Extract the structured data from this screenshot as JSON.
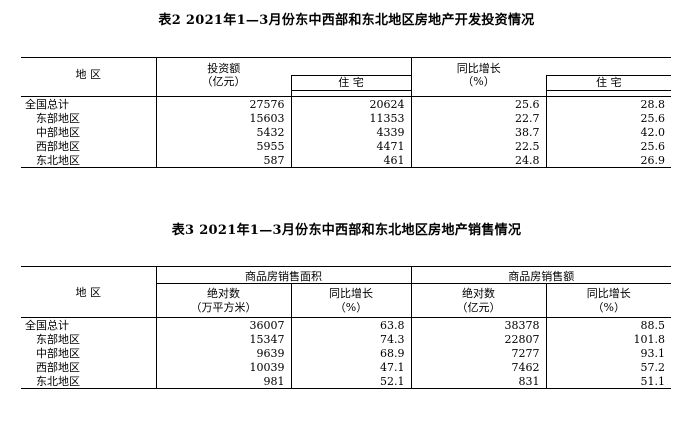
{
  "table2": {
    "title": "表2    2021年1—3月份东中西部和东北地区房地产开发投资情况",
    "header": {
      "region": "地    区",
      "investment": "投资额",
      "investment_unit": "（亿元）",
      "residential": "住    宅",
      "growth": "同比增长",
      "growth_unit": "（%）",
      "growth_residential": "住    宅"
    },
    "rows": [
      {
        "region": "全国总计",
        "investment": "27576",
        "residential": "20624",
        "growth": "25.6",
        "growth_residential": "28.8"
      },
      {
        "region": "东部地区",
        "investment": "15603",
        "residential": "11353",
        "growth": "22.7",
        "growth_residential": "25.6"
      },
      {
        "region": "中部地区",
        "investment": "5432",
        "residential": "4339",
        "growth": "38.7",
        "growth_residential": "42.0"
      },
      {
        "region": "西部地区",
        "investment": "5955",
        "residential": "4471",
        "growth": "22.5",
        "growth_residential": "25.6"
      },
      {
        "region": "东北地区",
        "investment": "587",
        "residential": "461",
        "growth": "24.8",
        "growth_residential": "26.9"
      }
    ]
  },
  "table3": {
    "title": "表3    2021年1—3月份东中西部和东北地区房地产销售情况",
    "header": {
      "region": "地    区",
      "area_group": "商品房销售面积",
      "amount_group": "商品房销售额",
      "area_abs": "绝对数",
      "area_abs_unit": "（万平方米）",
      "area_growth": "同比增长",
      "area_growth_unit": "（%）",
      "amount_abs": "绝对数",
      "amount_abs_unit": "（亿元）",
      "amount_growth": "同比增长",
      "amount_growth_unit": "（%）"
    },
    "rows": [
      {
        "region": "全国总计",
        "area": "36007",
        "area_growth": "63.8",
        "amount": "38378",
        "amount_growth": "88.5"
      },
      {
        "region": "东部地区",
        "area": "15347",
        "area_growth": "74.3",
        "amount": "22807",
        "amount_growth": "101.8"
      },
      {
        "region": "中部地区",
        "area": "9639",
        "area_growth": "68.9",
        "amount": "7277",
        "amount_growth": "93.1"
      },
      {
        "region": "西部地区",
        "area": "10039",
        "area_growth": "47.1",
        "amount": "7462",
        "amount_growth": "57.2"
      },
      {
        "region": "东北地区",
        "area": "981",
        "area_growth": "52.1",
        "amount": "831",
        "amount_growth": "51.1"
      }
    ]
  }
}
